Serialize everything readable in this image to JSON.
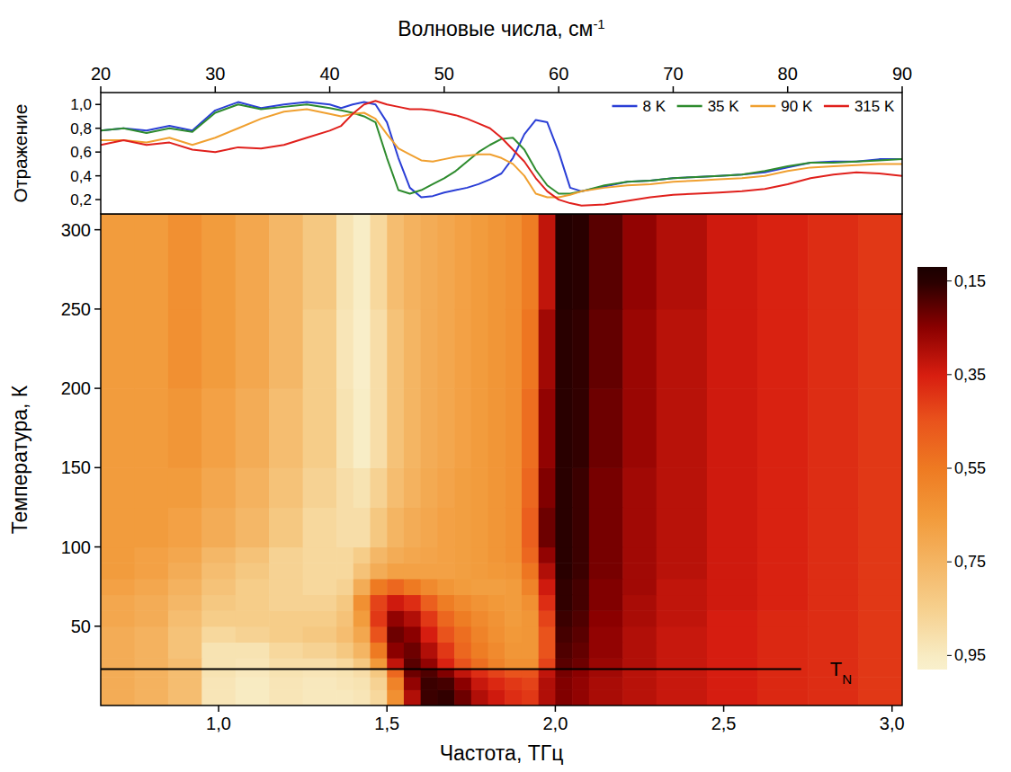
{
  "chart_data": [
    {
      "type": "line",
      "x_label": {
        "text": "Волновые числа, см",
        "sup": "-1"
      },
      "y_label": "Отражение",
      "xlim": [
        20,
        90
      ],
      "xticks": [
        20,
        30,
        40,
        50,
        60,
        70,
        80,
        90
      ],
      "ylim": [
        0.08,
        1.1
      ],
      "yticks": [
        {
          "value": 0.2,
          "label": "0,2"
        },
        {
          "value": 0.4,
          "label": "0,4"
        },
        {
          "value": 0.6,
          "label": "0,6"
        },
        {
          "value": 0.8,
          "label": "0,8"
        },
        {
          "value": 1.0,
          "label": "1,0"
        }
      ],
      "legend": "top-right",
      "x": [
        20,
        22,
        24,
        26,
        28,
        30,
        32,
        34,
        36,
        38,
        40,
        41,
        42,
        43,
        44,
        45,
        46,
        47,
        48,
        49,
        50,
        51,
        52,
        53,
        54,
        55,
        56,
        57,
        58,
        59,
        60,
        61,
        62,
        64,
        66,
        68,
        70,
        72,
        74,
        76,
        78,
        80,
        82,
        84,
        86,
        88,
        90
      ],
      "series": [
        {
          "name": "8 K",
          "color": "#2b3fd6",
          "values": [
            0.78,
            0.8,
            0.78,
            0.82,
            0.78,
            0.95,
            1.02,
            0.97,
            1.0,
            1.02,
            1.0,
            0.97,
            1.0,
            1.02,
            1.0,
            0.85,
            0.55,
            0.3,
            0.22,
            0.23,
            0.26,
            0.28,
            0.3,
            0.33,
            0.37,
            0.42,
            0.55,
            0.75,
            0.87,
            0.85,
            0.6,
            0.3,
            0.27,
            0.31,
            0.35,
            0.36,
            0.38,
            0.39,
            0.4,
            0.41,
            0.43,
            0.47,
            0.51,
            0.52,
            0.52,
            0.54,
            0.54
          ]
        },
        {
          "name": "35 K",
          "color": "#2e8b2e",
          "values": [
            0.78,
            0.8,
            0.76,
            0.8,
            0.77,
            0.93,
            1.0,
            0.96,
            0.98,
            1.0,
            0.97,
            0.95,
            0.93,
            0.9,
            0.85,
            0.55,
            0.28,
            0.25,
            0.28,
            0.33,
            0.38,
            0.44,
            0.52,
            0.6,
            0.66,
            0.71,
            0.72,
            0.62,
            0.45,
            0.32,
            0.25,
            0.25,
            0.27,
            0.32,
            0.35,
            0.36,
            0.38,
            0.39,
            0.4,
            0.41,
            0.44,
            0.48,
            0.51,
            0.51,
            0.52,
            0.53,
            0.54
          ]
        },
        {
          "name": "90 K",
          "color": "#f0a030",
          "values": [
            0.7,
            0.7,
            0.68,
            0.72,
            0.66,
            0.72,
            0.8,
            0.88,
            0.94,
            0.96,
            0.92,
            0.9,
            0.92,
            0.93,
            0.88,
            0.75,
            0.63,
            0.58,
            0.53,
            0.52,
            0.54,
            0.56,
            0.57,
            0.58,
            0.58,
            0.55,
            0.5,
            0.4,
            0.25,
            0.22,
            0.22,
            0.24,
            0.27,
            0.3,
            0.32,
            0.33,
            0.35,
            0.36,
            0.37,
            0.38,
            0.4,
            0.44,
            0.47,
            0.48,
            0.49,
            0.5,
            0.5
          ]
        },
        {
          "name": "315 K",
          "color": "#e0201c",
          "values": [
            0.66,
            0.7,
            0.66,
            0.68,
            0.62,
            0.6,
            0.64,
            0.63,
            0.66,
            0.72,
            0.78,
            0.82,
            0.92,
            1.0,
            1.03,
            1.0,
            0.98,
            0.96,
            0.96,
            0.95,
            0.93,
            0.91,
            0.88,
            0.84,
            0.8,
            0.72,
            0.62,
            0.52,
            0.38,
            0.27,
            0.2,
            0.17,
            0.15,
            0.16,
            0.19,
            0.22,
            0.24,
            0.25,
            0.26,
            0.27,
            0.29,
            0.33,
            0.38,
            0.41,
            0.43,
            0.42,
            0.4
          ]
        }
      ]
    },
    {
      "type": "heatmap",
      "x_label": "Частота, ТГц",
      "y_label": "Температура, К",
      "xlim": [
        0.65,
        3.03
      ],
      "xticks": [
        {
          "value": 1.0,
          "label": "1,0"
        },
        {
          "value": 1.5,
          "label": "1,5"
        },
        {
          "value": 2.0,
          "label": "2,0"
        },
        {
          "value": 2.5,
          "label": "2,5"
        },
        {
          "value": 3.0,
          "label": "3,0"
        }
      ],
      "ylim": [
        0,
        310
      ],
      "yticks": [
        50,
        100,
        150,
        200,
        250,
        300
      ],
      "x_edges": [
        0.65,
        0.75,
        0.85,
        0.95,
        1.05,
        1.15,
        1.25,
        1.35,
        1.4,
        1.45,
        1.5,
        1.55,
        1.6,
        1.65,
        1.7,
        1.75,
        1.8,
        1.85,
        1.9,
        1.95,
        2.0,
        2.05,
        2.1,
        2.2,
        2.3,
        2.45,
        2.6,
        2.75,
        2.9,
        3.03
      ],
      "y_edges": [
        0,
        10,
        18,
        23,
        30,
        40,
        50,
        60,
        70,
        80,
        90,
        100,
        125,
        150,
        200,
        250,
        310
      ],
      "z": [
        [
          0.72,
          0.74,
          0.78,
          0.93,
          0.95,
          0.93,
          0.94,
          0.94,
          0.93,
          0.88,
          0.62,
          0.3,
          0.17,
          0.16,
          0.22,
          0.3,
          0.34,
          0.38,
          0.4,
          0.3,
          0.24,
          0.26,
          0.29,
          0.31,
          0.33,
          0.35,
          0.37,
          0.38,
          0.4
        ],
        [
          0.72,
          0.74,
          0.78,
          0.93,
          0.95,
          0.93,
          0.94,
          0.93,
          0.92,
          0.86,
          0.58,
          0.26,
          0.17,
          0.18,
          0.25,
          0.33,
          0.37,
          0.4,
          0.42,
          0.3,
          0.24,
          0.26,
          0.29,
          0.31,
          0.33,
          0.35,
          0.37,
          0.38,
          0.4
        ],
        [
          0.72,
          0.74,
          0.78,
          0.92,
          0.94,
          0.92,
          0.93,
          0.92,
          0.9,
          0.82,
          0.5,
          0.22,
          0.19,
          0.24,
          0.32,
          0.38,
          0.42,
          0.45,
          0.45,
          0.32,
          0.23,
          0.25,
          0.28,
          0.31,
          0.33,
          0.35,
          0.37,
          0.38,
          0.4
        ],
        [
          0.72,
          0.74,
          0.78,
          0.92,
          0.93,
          0.9,
          0.9,
          0.88,
          0.82,
          0.65,
          0.32,
          0.2,
          0.26,
          0.36,
          0.45,
          0.52,
          0.58,
          0.62,
          0.62,
          0.42,
          0.2,
          0.22,
          0.27,
          0.3,
          0.33,
          0.35,
          0.37,
          0.38,
          0.4
        ],
        [
          0.72,
          0.74,
          0.8,
          0.92,
          0.92,
          0.88,
          0.86,
          0.82,
          0.75,
          0.55,
          0.25,
          0.22,
          0.3,
          0.4,
          0.5,
          0.56,
          0.6,
          0.64,
          0.64,
          0.45,
          0.19,
          0.21,
          0.26,
          0.3,
          0.33,
          0.35,
          0.37,
          0.38,
          0.4
        ],
        [
          0.72,
          0.74,
          0.8,
          0.88,
          0.86,
          0.84,
          0.82,
          0.78,
          0.7,
          0.45,
          0.22,
          0.25,
          0.35,
          0.45,
          0.52,
          0.58,
          0.62,
          0.65,
          0.64,
          0.45,
          0.18,
          0.2,
          0.26,
          0.3,
          0.33,
          0.35,
          0.37,
          0.38,
          0.4
        ],
        [
          0.7,
          0.72,
          0.78,
          0.84,
          0.84,
          0.84,
          0.84,
          0.8,
          0.66,
          0.4,
          0.26,
          0.3,
          0.4,
          0.5,
          0.56,
          0.6,
          0.63,
          0.66,
          0.64,
          0.42,
          0.17,
          0.19,
          0.25,
          0.29,
          0.32,
          0.35,
          0.37,
          0.38,
          0.4
        ],
        [
          0.7,
          0.72,
          0.76,
          0.82,
          0.84,
          0.86,
          0.86,
          0.82,
          0.62,
          0.42,
          0.34,
          0.38,
          0.48,
          0.56,
          0.6,
          0.63,
          0.65,
          0.66,
          0.62,
          0.38,
          0.16,
          0.18,
          0.24,
          0.29,
          0.32,
          0.34,
          0.36,
          0.38,
          0.4
        ],
        [
          0.68,
          0.7,
          0.74,
          0.8,
          0.84,
          0.86,
          0.88,
          0.86,
          0.72,
          0.55,
          0.5,
          0.55,
          0.6,
          0.64,
          0.66,
          0.67,
          0.67,
          0.66,
          0.58,
          0.34,
          0.16,
          0.18,
          0.24,
          0.28,
          0.32,
          0.34,
          0.36,
          0.38,
          0.4
        ],
        [
          0.66,
          0.68,
          0.72,
          0.78,
          0.82,
          0.86,
          0.88,
          0.88,
          0.8,
          0.72,
          0.68,
          0.68,
          0.68,
          0.68,
          0.67,
          0.66,
          0.65,
          0.64,
          0.54,
          0.3,
          0.15,
          0.17,
          0.23,
          0.28,
          0.31,
          0.34,
          0.36,
          0.38,
          0.4
        ],
        [
          0.66,
          0.68,
          0.7,
          0.76,
          0.8,
          0.86,
          0.88,
          0.88,
          0.84,
          0.76,
          0.72,
          0.7,
          0.69,
          0.68,
          0.67,
          0.66,
          0.64,
          0.62,
          0.5,
          0.26,
          0.15,
          0.17,
          0.23,
          0.28,
          0.31,
          0.34,
          0.36,
          0.38,
          0.4
        ],
        [
          0.66,
          0.66,
          0.68,
          0.72,
          0.76,
          0.82,
          0.88,
          0.9,
          0.9,
          0.82,
          0.75,
          0.72,
          0.7,
          0.68,
          0.67,
          0.66,
          0.64,
          0.62,
          0.48,
          0.22,
          0.15,
          0.17,
          0.23,
          0.28,
          0.31,
          0.34,
          0.36,
          0.38,
          0.4
        ],
        [
          0.66,
          0.66,
          0.66,
          0.7,
          0.74,
          0.8,
          0.86,
          0.9,
          0.92,
          0.86,
          0.78,
          0.74,
          0.71,
          0.69,
          0.67,
          0.66,
          0.64,
          0.62,
          0.5,
          0.24,
          0.15,
          0.17,
          0.23,
          0.28,
          0.31,
          0.34,
          0.36,
          0.38,
          0.4
        ],
        [
          0.66,
          0.66,
          0.64,
          0.68,
          0.72,
          0.78,
          0.84,
          0.92,
          0.96,
          0.9,
          0.8,
          0.75,
          0.72,
          0.7,
          0.68,
          0.66,
          0.64,
          0.62,
          0.52,
          0.26,
          0.15,
          0.16,
          0.22,
          0.27,
          0.31,
          0.34,
          0.36,
          0.38,
          0.4
        ],
        [
          0.66,
          0.66,
          0.62,
          0.66,
          0.7,
          0.76,
          0.84,
          0.93,
          0.97,
          0.9,
          0.8,
          0.75,
          0.72,
          0.7,
          0.68,
          0.66,
          0.64,
          0.62,
          0.54,
          0.28,
          0.15,
          0.16,
          0.21,
          0.27,
          0.31,
          0.34,
          0.36,
          0.38,
          0.4
        ],
        [
          0.66,
          0.66,
          0.62,
          0.66,
          0.7,
          0.76,
          0.82,
          0.92,
          0.96,
          0.88,
          0.78,
          0.74,
          0.72,
          0.7,
          0.68,
          0.66,
          0.64,
          0.62,
          0.56,
          0.32,
          0.14,
          0.15,
          0.2,
          0.26,
          0.3,
          0.34,
          0.36,
          0.38,
          0.4
        ]
      ],
      "colorbar": {
        "range": [
          0.12,
          0.98
        ],
        "ticks": [
          {
            "value": 0.15,
            "label": "0,15"
          },
          {
            "value": 0.35,
            "label": "0,35"
          },
          {
            "value": 0.55,
            "label": "0,55"
          },
          {
            "value": 0.75,
            "label": "0,75"
          },
          {
            "value": 0.95,
            "label": "0,95"
          }
        ]
      },
      "annotations": [
        {
          "text": "T",
          "subscript": "N",
          "y": 23,
          "x_end": 2.73
        }
      ]
    }
  ]
}
